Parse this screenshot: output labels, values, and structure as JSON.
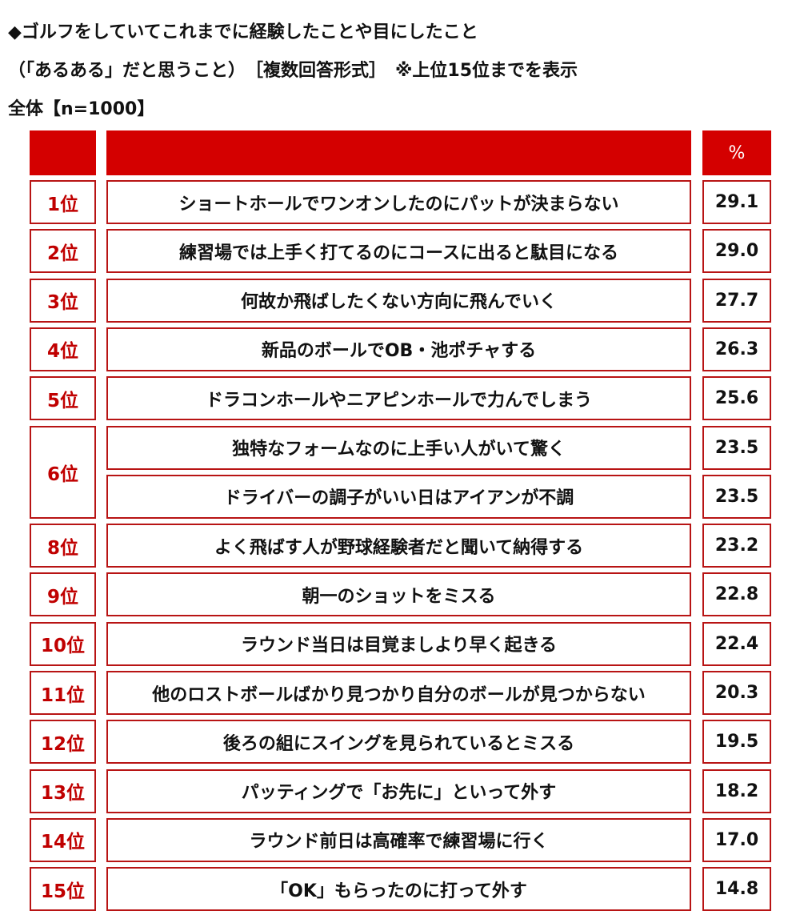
{
  "title": {
    "line1": "◆ゴルフをしていてこれまでに経験したことや目にしたこと",
    "line2": "（「あるある」だと思うこと）　［複数回答形式］　※上位15位までを表示",
    "line3": "全体【n=1000】"
  },
  "table": {
    "headers": [
      "",
      "",
      "%"
    ],
    "rows": [
      {
        "rank": "1位",
        "item": "ショートホールでワンオンしたのにパットが決まらない",
        "pct": "29.1"
      },
      {
        "rank": "2位",
        "item": "練習場では上手く打てるのにコースに出ると駄目になる",
        "pct": "29.0"
      },
      {
        "rank": "3位",
        "item": "何故か飛ばしたくない方向に飛んでいく",
        "pct": "27.7"
      },
      {
        "rank": "4位",
        "item": "新品のボールでOB・池ポチャする",
        "pct": "26.3"
      },
      {
        "rank": "5位",
        "item": "ドラコンホールやニアピンホールで力んでしまう",
        "pct": "25.6"
      },
      {
        "rank": "6位",
        "item": "独特なフォームなのに上手い人がいて驚く",
        "pct": "23.5"
      },
      {
        "rank": "",
        "item": "ドライバーの調子がいい日はアイアンが不調",
        "pct": "23.5"
      },
      {
        "rank": "8位",
        "item": "よく飛ばす人が野球経験者だと聞いて納得する",
        "pct": "23.2"
      },
      {
        "rank": "9位",
        "item": "朝一のショットをミスる",
        "pct": "22.8"
      },
      {
        "rank": "10位",
        "item": "ラウンド当日は目覚ましより早く起きる",
        "pct": "22.4"
      },
      {
        "rank": "11位",
        "item": "他のロストボールばかり見つかり自分のボールが見つからない",
        "pct": "20.3"
      },
      {
        "rank": "12位",
        "item": "後ろの組にスイングを見られているとミスる",
        "pct": "19.5"
      },
      {
        "rank": "13位",
        "item": "パッティングで「お先に」といって外す",
        "pct": "18.2"
      },
      {
        "rank": "14位",
        "item": "ラウンド前日は高確率で練習場に行く",
        "pct": "17.0"
      },
      {
        "rank": "15位",
        "item": "「OK」もらったのに打って外す",
        "pct": "14.8"
      }
    ]
  }
}
